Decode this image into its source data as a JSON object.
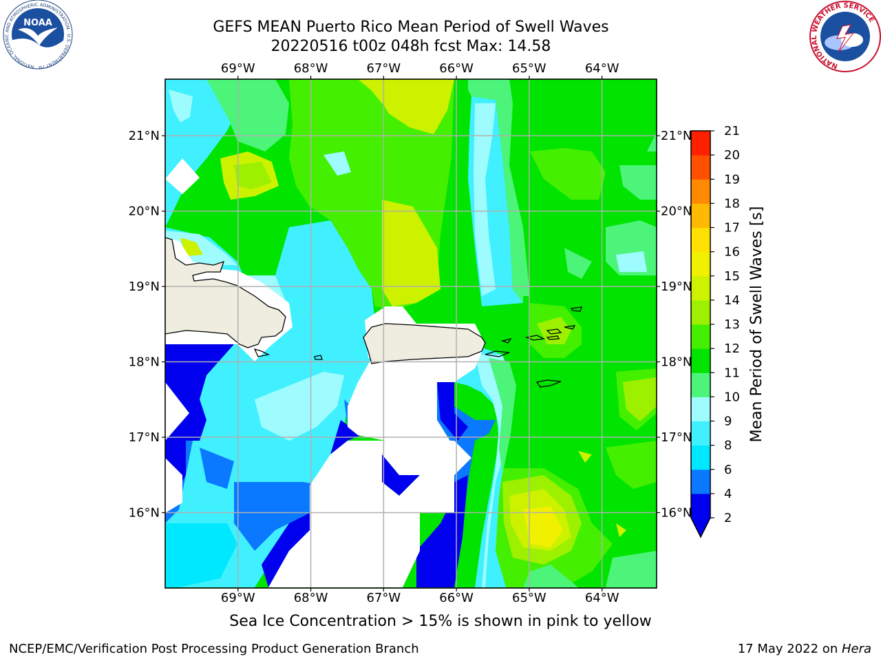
{
  "header": {
    "title_line1": "GEFS MEAN Puerto Rico Mean Period of Swell Waves",
    "title_line2": "20220516 t00z 048h fcst   Max: 14.58"
  },
  "logos": {
    "noaa_text": "NOAA",
    "noaa_ring_text": "NATIONAL OCEANIC AND ATMOSPHERIC ADMINISTRATION · U.S. DEPARTMENT OF COMMERCE",
    "nws_ring_text": "NATIONAL WEATHER SERVICE"
  },
  "map": {
    "lon_labels": [
      "69°W",
      "68°W",
      "67°W",
      "66°W",
      "65°W",
      "64°W"
    ],
    "lat_labels": [
      "21°N",
      "20°N",
      "19°N",
      "18°N",
      "17°N",
      "16°N"
    ],
    "lon_values": [
      -69,
      -68,
      -67,
      -66,
      -65,
      -64
    ],
    "lat_values": [
      21,
      20,
      19,
      18,
      17,
      16
    ],
    "extent": {
      "lon_min": -70.0,
      "lon_max": -63.25,
      "lat_min": 15.0,
      "lat_max": 21.75
    },
    "land_color": "#eeeddf",
    "grid_color": "#b0b0b0"
  },
  "colorbar": {
    "label": "Mean Period of Swell Waves [s]",
    "ticks": [
      "2",
      "4",
      "6",
      "8",
      "9",
      "10",
      "11",
      "12",
      "13",
      "14",
      "15",
      "16",
      "17",
      "18",
      "19",
      "20",
      "21"
    ],
    "colors": [
      "#0000ee",
      "#0a78ff",
      "#00e8ff",
      "#40f0ff",
      "#9efcff",
      "#4cf47a",
      "#00e400",
      "#44f000",
      "#9cf000",
      "#ccf200",
      "#f0f000",
      "#ffe000",
      "#ffba00",
      "#ff8a00",
      "#ff5000",
      "#ff2000"
    ],
    "extend_min_color": "#0000ee"
  },
  "note": "Sea Ice Concentration > 15% is shown in pink to yellow",
  "footer": {
    "left": "NCEP/EMC/Verification Post Processing Product Generation Branch",
    "right_prefix": "17 May 2022 on ",
    "right_italic": "Hera"
  },
  "chart_data": {
    "type": "heatmap",
    "title": "GEFS MEAN Puerto Rico Mean Period of Swell Waves",
    "subtitle": "20220516 t00z 048h fcst   Max: 14.58",
    "max": 14.58,
    "units": "s",
    "levels": [
      2,
      4,
      6,
      8,
      9,
      10,
      11,
      12,
      13,
      14,
      15,
      16,
      17,
      18,
      19,
      20,
      21
    ],
    "x_unit": "lon",
    "y_unit": "lat",
    "xlim": [
      -70.0,
      -63.25
    ],
    "ylim": [
      15.0,
      21.75
    ]
  }
}
